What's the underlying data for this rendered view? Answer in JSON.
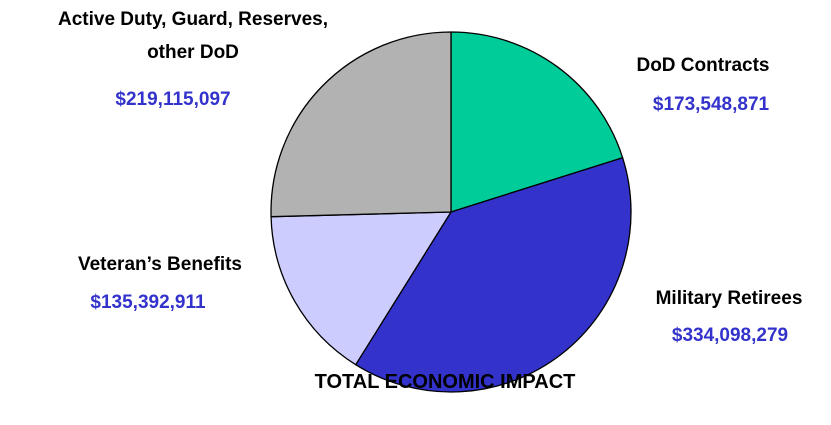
{
  "chart_data": {
    "type": "pie",
    "title": "TOTAL ECONOMIC IMPACT",
    "value_color": "#3333cc",
    "slices": [
      {
        "label_lines": [
          "DoD Contracts"
        ],
        "value": 173548871,
        "value_text": "$173,548,871",
        "color": "#00cc99"
      },
      {
        "label_lines": [
          "Military Retirees"
        ],
        "value": 334098279,
        "value_text": "$334,098,279",
        "color": "#3333cc"
      },
      {
        "label_lines": [
          "Veteran’s Benefits"
        ],
        "value": 135392911,
        "value_text": "$135,392,911",
        "color": "#ccccff"
      },
      {
        "label_lines": [
          "Active Duty, Guard, Reserves,",
          "other DoD"
        ],
        "value": 219115097,
        "value_text": "$219,115,097",
        "color": "#b2b2b2"
      }
    ]
  }
}
